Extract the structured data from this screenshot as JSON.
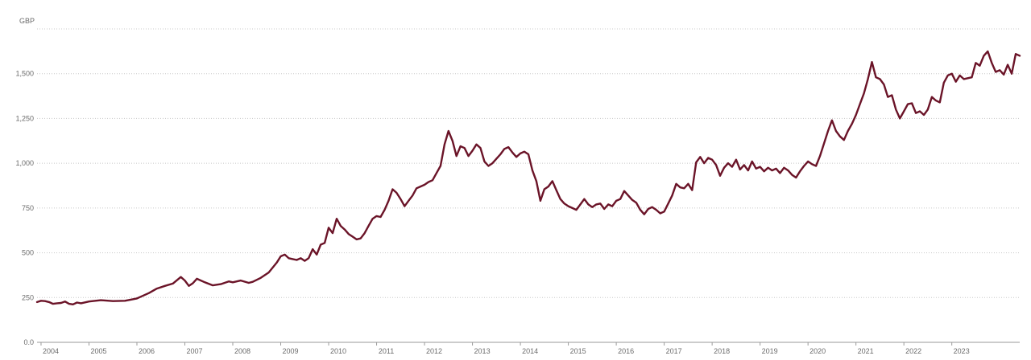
{
  "colors": {
    "line": "#6b1428",
    "grid": "#c8c8c8",
    "text": "#6b6b6b"
  },
  "chart_data": {
    "type": "line",
    "title": "",
    "xlabel": "",
    "ylabel": "GBP",
    "ylim": [
      0,
      1750
    ],
    "xlim": [
      "2003-12",
      "2023-11"
    ],
    "grid": "horizontal-dotted",
    "legend": "none",
    "y_ticks": [
      0,
      250,
      500,
      750,
      1000,
      1250,
      1500
    ],
    "y_tick_labels": [
      "0.0",
      "250",
      "500",
      "750",
      "1,000",
      "1,250",
      "1,500"
    ],
    "x_tick_labels": [
      "2004",
      "2005",
      "2006",
      "2007",
      "2008",
      "2009",
      "2010",
      "2011",
      "2012",
      "2013",
      "2014",
      "2015",
      "2016",
      "2017",
      "2018",
      "2019",
      "2020",
      "2021",
      "2022",
      "2023"
    ],
    "series": [
      {
        "name": "",
        "points": [
          [
            "2003-12",
            225
          ],
          [
            "2004-01",
            232
          ],
          [
            "2004-02",
            230
          ],
          [
            "2004-03",
            225
          ],
          [
            "2004-04",
            215
          ],
          [
            "2004-05",
            218
          ],
          [
            "2004-06",
            220
          ],
          [
            "2004-07",
            228
          ],
          [
            "2004-08",
            215
          ],
          [
            "2004-09",
            212
          ],
          [
            "2004-10",
            222
          ],
          [
            "2004-11",
            218
          ],
          [
            "2005-01",
            228
          ],
          [
            "2005-04",
            235
          ],
          [
            "2005-07",
            230
          ],
          [
            "2005-10",
            232
          ],
          [
            "2006-01",
            245
          ],
          [
            "2006-02",
            255
          ],
          [
            "2006-04",
            275
          ],
          [
            "2006-06",
            300
          ],
          [
            "2006-08",
            315
          ],
          [
            "2006-10",
            328
          ],
          [
            "2006-12",
            365
          ],
          [
            "2007-01",
            345
          ],
          [
            "2007-02",
            315
          ],
          [
            "2007-03",
            330
          ],
          [
            "2007-04",
            355
          ],
          [
            "2007-06",
            335
          ],
          [
            "2007-08",
            318
          ],
          [
            "2007-10",
            325
          ],
          [
            "2007-12",
            340
          ],
          [
            "2008-01",
            335
          ],
          [
            "2008-03",
            345
          ],
          [
            "2008-05",
            332
          ],
          [
            "2008-06",
            338
          ],
          [
            "2008-08",
            360
          ],
          [
            "2008-10",
            390
          ],
          [
            "2008-12",
            445
          ],
          [
            "2009-01",
            480
          ],
          [
            "2009-02",
            490
          ],
          [
            "2009-03",
            470
          ],
          [
            "2009-04",
            465
          ],
          [
            "2009-05",
            460
          ],
          [
            "2009-06",
            470
          ],
          [
            "2009-07",
            455
          ],
          [
            "2009-08",
            470
          ],
          [
            "2009-09",
            520
          ],
          [
            "2009-10",
            490
          ],
          [
            "2009-11",
            545
          ],
          [
            "2009-12",
            555
          ],
          [
            "2010-01",
            640
          ],
          [
            "2010-02",
            610
          ],
          [
            "2010-03",
            690
          ],
          [
            "2010-04",
            650
          ],
          [
            "2010-05",
            630
          ],
          [
            "2010-06",
            605
          ],
          [
            "2010-07",
            590
          ],
          [
            "2010-08",
            575
          ],
          [
            "2010-09",
            580
          ],
          [
            "2010-10",
            610
          ],
          [
            "2010-11",
            650
          ],
          [
            "2010-12",
            690
          ],
          [
            "2011-01",
            705
          ],
          [
            "2011-02",
            700
          ],
          [
            "2011-03",
            740
          ],
          [
            "2011-04",
            790
          ],
          [
            "2011-05",
            855
          ],
          [
            "2011-06",
            835
          ],
          [
            "2011-07",
            800
          ],
          [
            "2011-08",
            760
          ],
          [
            "2011-09",
            790
          ],
          [
            "2011-10",
            820
          ],
          [
            "2011-11",
            860
          ],
          [
            "2011-12",
            870
          ],
          [
            "2012-01",
            880
          ],
          [
            "2012-02",
            895
          ],
          [
            "2012-03",
            905
          ],
          [
            "2012-04",
            945
          ],
          [
            "2012-05",
            985
          ],
          [
            "2012-06",
            1105
          ],
          [
            "2012-07",
            1180
          ],
          [
            "2012-08",
            1125
          ],
          [
            "2012-09",
            1040
          ],
          [
            "2012-10",
            1095
          ],
          [
            "2012-11",
            1085
          ],
          [
            "2012-12",
            1040
          ],
          [
            "2013-01",
            1070
          ],
          [
            "2013-02",
            1105
          ],
          [
            "2013-03",
            1085
          ],
          [
            "2013-04",
            1010
          ],
          [
            "2013-05",
            985
          ],
          [
            "2013-06",
            1000
          ],
          [
            "2013-07",
            1025
          ],
          [
            "2013-08",
            1050
          ],
          [
            "2013-09",
            1080
          ],
          [
            "2013-10",
            1090
          ],
          [
            "2013-11",
            1060
          ],
          [
            "2013-12",
            1035
          ],
          [
            "2014-01",
            1055
          ],
          [
            "2014-02",
            1065
          ],
          [
            "2014-03",
            1050
          ],
          [
            "2014-04",
            960
          ],
          [
            "2014-05",
            900
          ],
          [
            "2014-06",
            790
          ],
          [
            "2014-07",
            855
          ],
          [
            "2014-08",
            870
          ],
          [
            "2014-09",
            900
          ],
          [
            "2014-10",
            850
          ],
          [
            "2014-11",
            800
          ],
          [
            "2014-12",
            775
          ],
          [
            "2015-01",
            760
          ],
          [
            "2015-02",
            750
          ],
          [
            "2015-03",
            740
          ],
          [
            "2015-04",
            770
          ],
          [
            "2015-05",
            800
          ],
          [
            "2015-06",
            770
          ],
          [
            "2015-07",
            755
          ],
          [
            "2015-08",
            770
          ],
          [
            "2015-09",
            775
          ],
          [
            "2015-10",
            745
          ],
          [
            "2015-11",
            770
          ],
          [
            "2015-12",
            760
          ],
          [
            "2016-01",
            790
          ],
          [
            "2016-02",
            800
          ],
          [
            "2016-03",
            845
          ],
          [
            "2016-04",
            820
          ],
          [
            "2016-05",
            795
          ],
          [
            "2016-06",
            780
          ],
          [
            "2016-07",
            740
          ],
          [
            "2016-08",
            715
          ],
          [
            "2016-09",
            745
          ],
          [
            "2016-10",
            755
          ],
          [
            "2016-11",
            740
          ],
          [
            "2016-12",
            720
          ],
          [
            "2017-01",
            730
          ],
          [
            "2017-02",
            775
          ],
          [
            "2017-03",
            820
          ],
          [
            "2017-04",
            885
          ],
          [
            "2017-05",
            865
          ],
          [
            "2017-06",
            860
          ],
          [
            "2017-07",
            885
          ],
          [
            "2017-08",
            850
          ],
          [
            "2017-09",
            1005
          ],
          [
            "2017-10",
            1035
          ],
          [
            "2017-11",
            1000
          ],
          [
            "2017-12",
            1030
          ],
          [
            "2018-01",
            1020
          ],
          [
            "2018-02",
            990
          ],
          [
            "2018-03",
            930
          ],
          [
            "2018-04",
            975
          ],
          [
            "2018-05",
            1000
          ],
          [
            "2018-06",
            980
          ],
          [
            "2018-07",
            1020
          ],
          [
            "2018-08",
            965
          ],
          [
            "2018-09",
            990
          ],
          [
            "2018-10",
            960
          ],
          [
            "2018-11",
            1010
          ],
          [
            "2018-12",
            970
          ],
          [
            "2019-01",
            980
          ],
          [
            "2019-02",
            955
          ],
          [
            "2019-03",
            975
          ],
          [
            "2019-04",
            960
          ],
          [
            "2019-05",
            970
          ],
          [
            "2019-06",
            945
          ],
          [
            "2019-07",
            975
          ],
          [
            "2019-08",
            960
          ],
          [
            "2019-09",
            935
          ],
          [
            "2019-10",
            920
          ],
          [
            "2019-11",
            955
          ],
          [
            "2019-12",
            985
          ],
          [
            "2020-01",
            1010
          ],
          [
            "2020-02",
            995
          ],
          [
            "2020-03",
            985
          ],
          [
            "2020-04",
            1040
          ],
          [
            "2020-05",
            1110
          ],
          [
            "2020-06",
            1180
          ],
          [
            "2020-07",
            1240
          ],
          [
            "2020-08",
            1180
          ],
          [
            "2020-09",
            1150
          ],
          [
            "2020-10",
            1130
          ],
          [
            "2020-11",
            1180
          ],
          [
            "2020-12",
            1220
          ],
          [
            "2021-01",
            1270
          ],
          [
            "2021-02",
            1330
          ],
          [
            "2021-03",
            1390
          ],
          [
            "2021-04",
            1470
          ],
          [
            "2021-05",
            1565
          ],
          [
            "2021-06",
            1480
          ],
          [
            "2021-07",
            1470
          ],
          [
            "2021-08",
            1440
          ],
          [
            "2021-09",
            1370
          ],
          [
            "2021-10",
            1380
          ],
          [
            "2021-11",
            1300
          ],
          [
            "2021-12",
            1250
          ],
          [
            "2022-01",
            1290
          ],
          [
            "2022-02",
            1330
          ],
          [
            "2022-03",
            1335
          ],
          [
            "2022-04",
            1280
          ],
          [
            "2022-05",
            1290
          ],
          [
            "2022-06",
            1270
          ],
          [
            "2022-07",
            1300
          ],
          [
            "2022-08",
            1370
          ],
          [
            "2022-09",
            1350
          ],
          [
            "2022-10",
            1340
          ],
          [
            "2022-11",
            1450
          ],
          [
            "2022-12",
            1490
          ],
          [
            "2023-01",
            1500
          ],
          [
            "2023-02",
            1455
          ],
          [
            "2023-03",
            1490
          ],
          [
            "2023-04",
            1470
          ],
          [
            "2023-05",
            1475
          ],
          [
            "2023-06",
            1480
          ],
          [
            "2023-07",
            1560
          ],
          [
            "2023-08",
            1545
          ],
          [
            "2023-09",
            1600
          ],
          [
            "2023-10",
            1625
          ],
          [
            "2023-11",
            1560
          ],
          [
            "2023-12",
            1510
          ],
          [
            "2024-01",
            1520
          ],
          [
            "2024-02",
            1495
          ],
          [
            "2024-03",
            1550
          ],
          [
            "2024-04",
            1500
          ],
          [
            "2024-05",
            1610
          ],
          [
            "2024-06",
            1600
          ]
        ]
      }
    ]
  }
}
